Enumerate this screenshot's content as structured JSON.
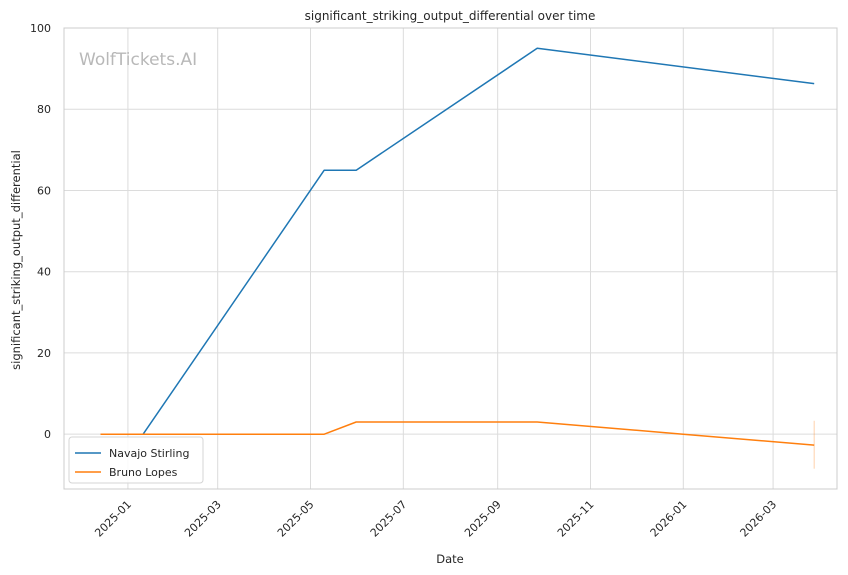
{
  "chart_data": {
    "type": "line",
    "title": "significant_striking_output_differential over time",
    "xlabel": "Date",
    "ylabel": "significant_striking_output_differential",
    "watermark": "WolfTickets.AI",
    "xlim": [
      "2024-11-20",
      "2026-04-12"
    ],
    "ylim": [
      -13.5,
      100
    ],
    "x_ticks": [
      "2025-01",
      "2025-03",
      "2025-05",
      "2025-07",
      "2025-09",
      "2025-11",
      "2026-01",
      "2026-03"
    ],
    "y_ticks": [
      0,
      20,
      40,
      60,
      80,
      100
    ],
    "grid": true,
    "legend_position": "lower-left",
    "series": [
      {
        "name": "Navajo Stirling",
        "color": "#1f77b4",
        "x": [
          "2024-12-14",
          "2025-01-11",
          "2025-05-10",
          "2025-05-31",
          "2025-09-27",
          "2026-03-28"
        ],
        "y": [
          0,
          0,
          65,
          65,
          95,
          86.3
        ]
      },
      {
        "name": "Bruno Lopes",
        "color": "#ff7f0e",
        "x": [
          "2024-12-14",
          "2025-01-11",
          "2025-05-10",
          "2025-05-31",
          "2025-09-27",
          "2026-01-01",
          "2026-03-28"
        ],
        "y": [
          0,
          0,
          0,
          3,
          3,
          0,
          -2.7
        ],
        "error_bar": {
          "x": "2026-03-28",
          "low": -8.5,
          "high": 3.3
        }
      }
    ]
  }
}
